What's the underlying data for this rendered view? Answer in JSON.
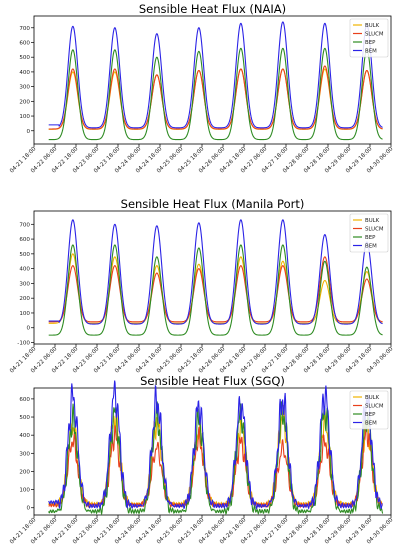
{
  "colors": {
    "BULK": "#f0b400",
    "SLUCM": "#e8401c",
    "BEP": "#2e8b22",
    "BEM": "#2b23e6"
  },
  "chart_data": [
    {
      "type": "line",
      "title": "Sensible Heat Flux (NAIA)",
      "xlabel": "",
      "ylabel": "",
      "ylim": [
        -90,
        780
      ],
      "yticks": [
        0,
        100,
        200,
        300,
        400,
        500,
        600,
        700
      ],
      "xticks": [
        "04-21 18:00",
        "04-22 06:00",
        "04-22 18:00",
        "04-23 06:00",
        "04-23 18:00",
        "04-24 06:00",
        "04-24 18:00",
        "04-25 06:00",
        "04-25 18:00",
        "04-26 06:00",
        "04-26 18:00",
        "04-27 06:00",
        "04-27 18:00",
        "04-28 06:00",
        "04-28 18:00",
        "04-29 06:00",
        "04-29 18:00",
        "04-30 06:00"
      ],
      "legend_position": "top-right",
      "noisy": false,
      "x_start": 0.7,
      "x_end": 16.6,
      "peak_x": [
        1.85,
        3.85,
        5.85,
        7.85,
        9.85,
        11.85,
        13.85,
        15.85
      ],
      "series": [
        {
          "name": "BULK",
          "peaks": [
            400,
            400,
            380,
            410,
            420,
            420,
            420,
            410
          ],
          "night": 10
        },
        {
          "name": "SLUCM",
          "peaks": [
            420,
            420,
            380,
            410,
            420,
            420,
            440,
            410
          ],
          "night": 12
        },
        {
          "name": "BEP",
          "peaks": [
            550,
            550,
            500,
            540,
            560,
            560,
            560,
            550
          ],
          "night": -60
        },
        {
          "name": "BEM",
          "peaks": [
            710,
            700,
            660,
            700,
            730,
            740,
            730,
            720
          ],
          "night": 20
        }
      ]
    },
    {
      "type": "line",
      "title": "Sensible Heat Flux (Manila Port)",
      "xlabel": "",
      "ylabel": "",
      "ylim": [
        -110,
        790
      ],
      "yticks": [
        -100,
        0,
        100,
        200,
        300,
        400,
        500,
        600,
        700
      ],
      "xticks": [
        "04-21 18:00",
        "04-22 06:00",
        "04-22 18:00",
        "04-23 06:00",
        "04-23 18:00",
        "04-24 06:00",
        "04-24 18:00",
        "04-25 06:00",
        "04-25 18:00",
        "04-26 06:00",
        "04-26 18:00",
        "04-27 06:00",
        "04-27 18:00",
        "04-28 06:00",
        "04-28 18:00",
        "04-29 06:00",
        "04-29 18:00",
        "04-30 06:00"
      ],
      "legend_position": "top-right",
      "noisy": false,
      "x_start": 0.7,
      "x_end": 16.6,
      "peak_x": [
        1.85,
        3.85,
        5.85,
        7.85,
        9.85,
        11.85,
        13.85,
        15.85
      ],
      "series": [
        {
          "name": "BULK",
          "peaks": [
            500,
            480,
            420,
            430,
            480,
            450,
            320,
            380
          ],
          "night": 30
        },
        {
          "name": "SLUCM",
          "peaks": [
            420,
            420,
            370,
            400,
            420,
            420,
            480,
            330
          ],
          "night": 40
        },
        {
          "name": "BEP",
          "peaks": [
            560,
            560,
            480,
            540,
            560,
            560,
            450,
            410
          ],
          "night": -50
        },
        {
          "name": "BEM",
          "peaks": [
            730,
            700,
            690,
            710,
            730,
            730,
            630,
            580
          ],
          "night": 25
        }
      ]
    },
    {
      "type": "line",
      "title": "Sensible Heat Flux (SGQ)",
      "xlabel": "",
      "ylabel": "",
      "ylim": [
        -40,
        660
      ],
      "yticks": [
        0,
        100,
        200,
        300,
        400,
        500,
        600
      ],
      "xticks": [
        "04-21 18:00",
        "04-22 06:00",
        "04-22 18:00",
        "04-23 06:00",
        "04-23 18:00",
        "04-24 06:00",
        "04-24 18:00",
        "04-25 06:00",
        "04-25 18:00",
        "04-26 06:00",
        "04-26 18:00",
        "04-27 06:00",
        "04-27 18:00",
        "04-28 06:00",
        "04-28 18:00",
        "04-29 06:00",
        "04-29 18:00",
        "04-30 06:00"
      ],
      "legend_position": "top-right",
      "noisy": true,
      "x_start": 0.7,
      "x_end": 16.6,
      "peak_x": [
        1.85,
        3.85,
        5.85,
        7.85,
        9.85,
        11.85,
        13.85,
        15.85
      ],
      "series": [
        {
          "name": "BULK",
          "peaks": [
            450,
            500,
            470,
            420,
            450,
            500,
            470,
            450
          ],
          "night": 20
        },
        {
          "name": "SLUCM",
          "peaks": [
            370,
            400,
            330,
            380,
            360,
            330,
            360,
            420
          ],
          "night": 15
        },
        {
          "name": "BEP",
          "peaks": [
            480,
            520,
            500,
            480,
            510,
            520,
            530,
            500
          ],
          "night": -20
        },
        {
          "name": "BEM",
          "peaks": [
            610,
            630,
            590,
            560,
            570,
            590,
            620,
            590
          ],
          "night": 10
        }
      ]
    }
  ]
}
